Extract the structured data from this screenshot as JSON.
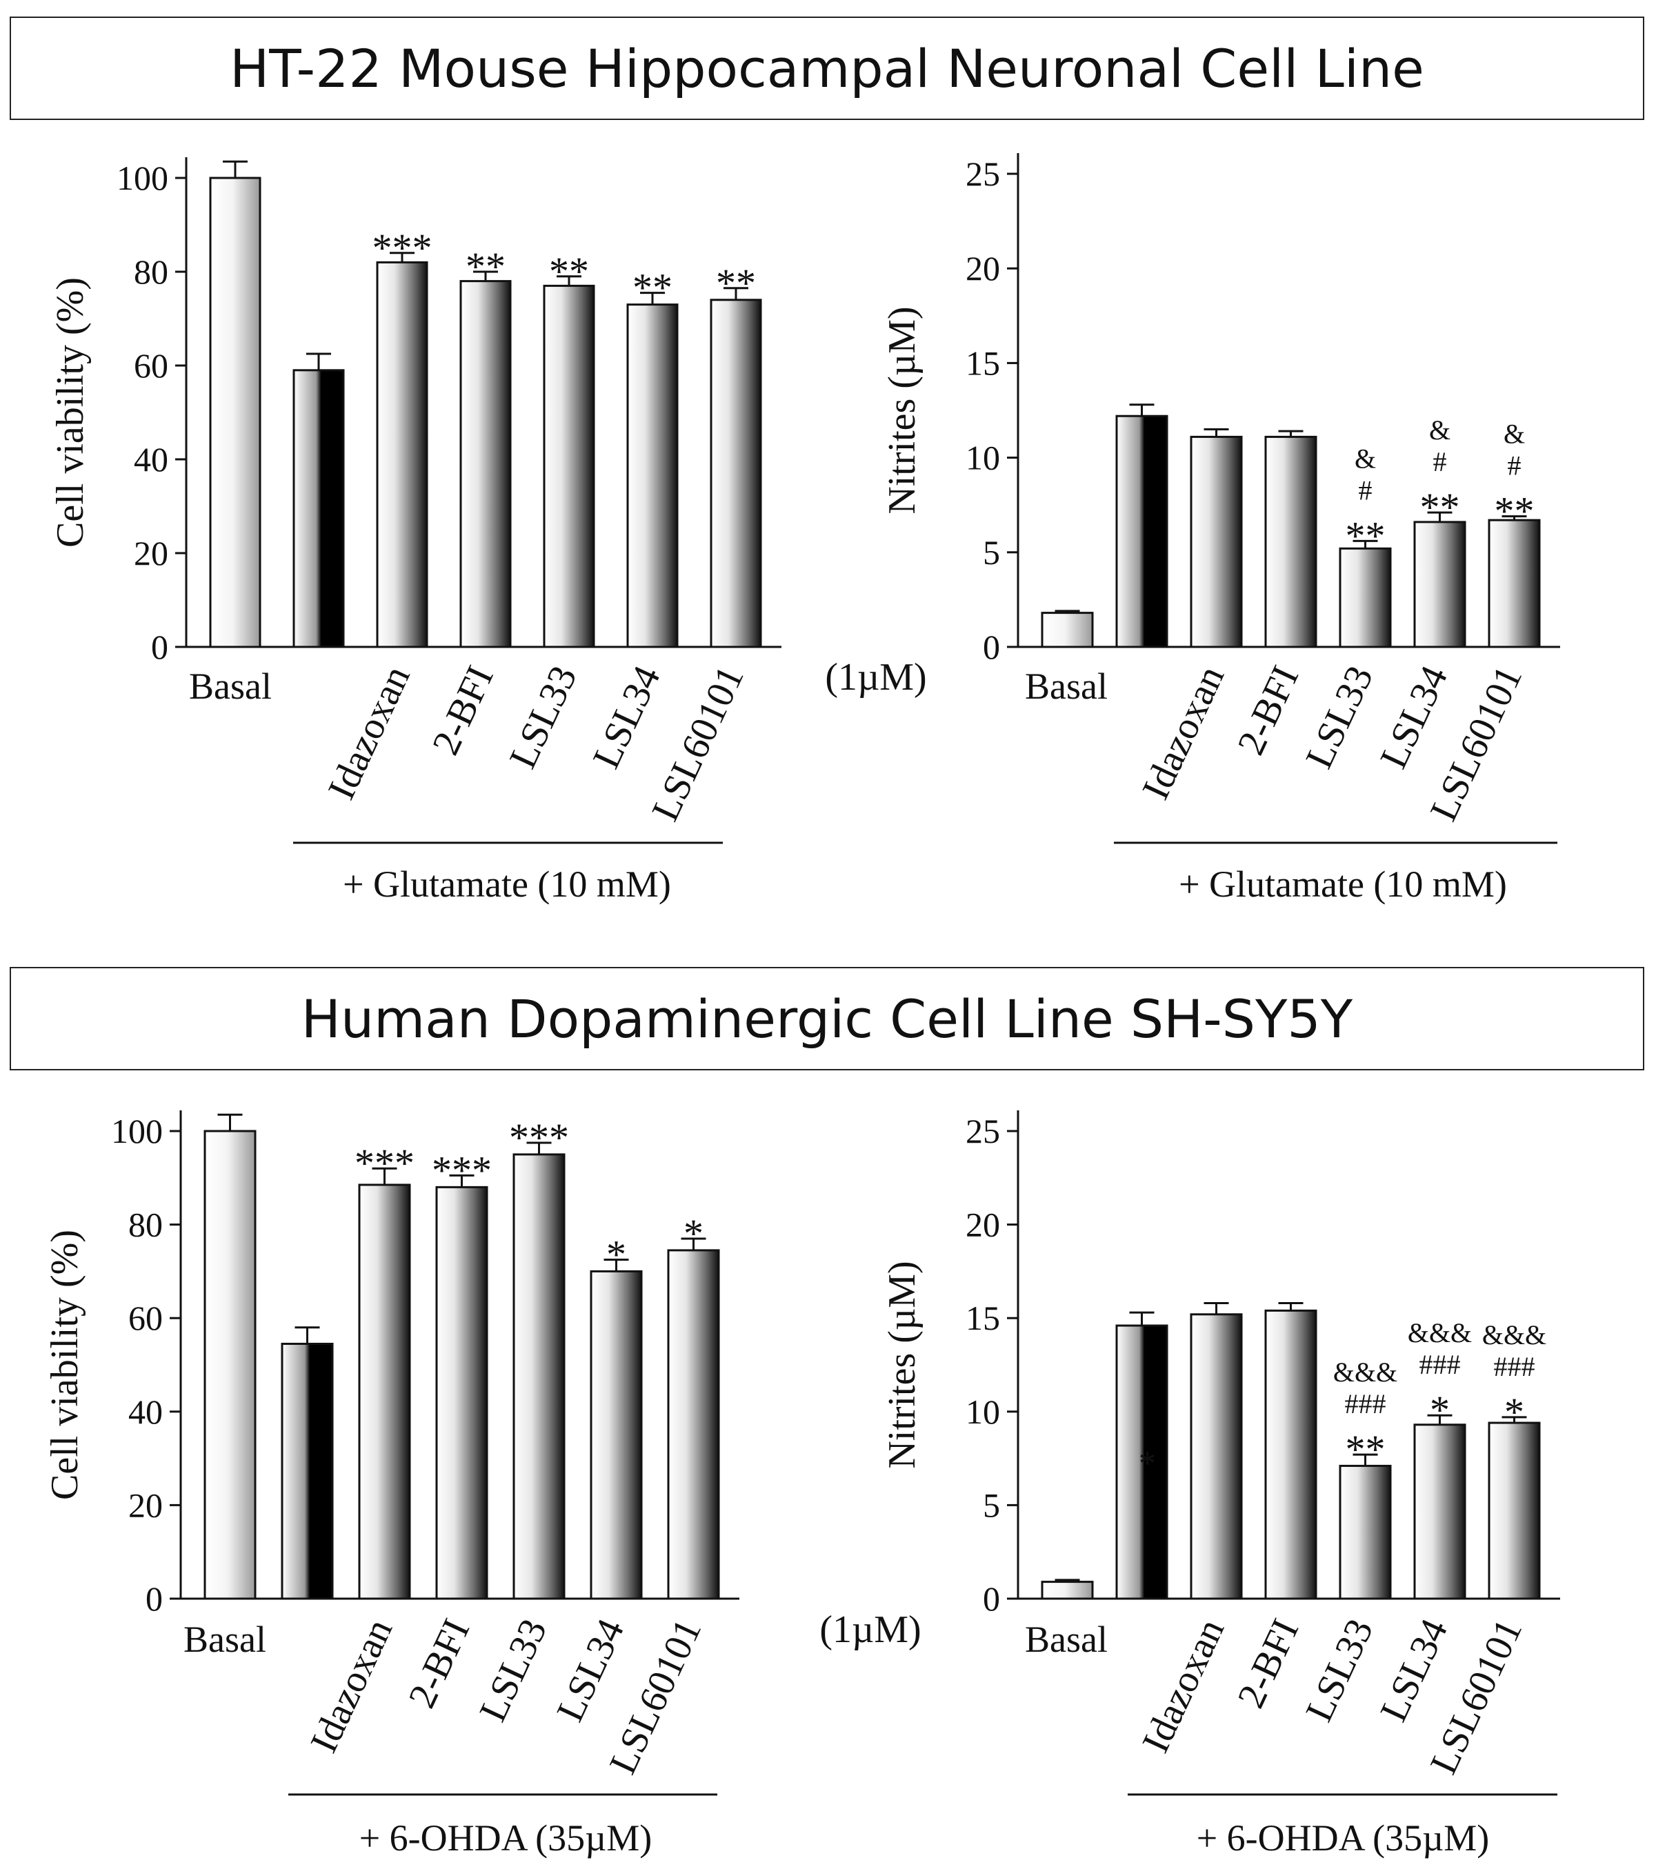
{
  "sections": [
    {
      "title": "HT-22 Mouse Hippocampal Neuronal Cell Line"
    },
    {
      "title": "Human Dopaminergic Cell Line SH-SY5Y"
    }
  ],
  "unit_label": "(1µM)",
  "chart_data": [
    {
      "type": "bar",
      "title": "HT-22 Mouse Hippocampal Neuronal Cell Line",
      "ylabel": "Cell viability (%)",
      "xlabel": "+ Glutamate (10 mM)",
      "ylim": [
        0,
        100
      ],
      "yticks": [
        0,
        20,
        40,
        60,
        80,
        100
      ],
      "categories": [
        "Basal",
        "",
        "Idazoxan",
        "2-BFI",
        "LSL33",
        "LSL34",
        "LSL60101"
      ],
      "values": [
        100,
        59,
        82,
        78,
        77,
        73,
        74
      ],
      "errors": [
        3.5,
        3.5,
        2.0,
        2.0,
        2.0,
        2.5,
        2.5
      ],
      "annotations": [
        [],
        [],
        [
          "***"
        ],
        [
          "**"
        ],
        [
          "**"
        ],
        [
          "**"
        ],
        [
          "**"
        ]
      ],
      "grid": false
    },
    {
      "type": "bar",
      "title": "HT-22 Mouse Hippocampal Neuronal Cell Line",
      "ylabel": "Nitrites (µM)",
      "xlabel": "+ Glutamate (10 mM)",
      "ylim": [
        0,
        25
      ],
      "yticks": [
        0,
        5,
        10,
        15,
        20,
        25
      ],
      "categories": [
        "Basal",
        "",
        "Idazoxan",
        "2-BFI",
        "LSL33",
        "LSL34",
        "LSL60101"
      ],
      "values": [
        1.8,
        12.2,
        11.1,
        11.1,
        5.2,
        6.6,
        6.7
      ],
      "errors": [
        0.1,
        0.6,
        0.4,
        0.3,
        0.4,
        0.5,
        0.2
      ],
      "annotations": [
        [],
        [],
        [],
        [],
        [
          "**",
          "#",
          "&"
        ],
        [
          "**",
          "#",
          "&"
        ],
        [
          "**",
          "#",
          "&"
        ]
      ],
      "grid": false
    },
    {
      "type": "bar",
      "title": "Human Dopaminergic Cell Line SH-SY5Y",
      "ylabel": "Cell viability (%)",
      "xlabel": "+ 6-OHDA (35µM)",
      "ylim": [
        0,
        100
      ],
      "yticks": [
        0,
        20,
        40,
        60,
        80,
        100
      ],
      "categories": [
        "Basal",
        "",
        "Idazoxan",
        "2-BFI",
        "LSL33",
        "LSL34",
        "LSL60101"
      ],
      "values": [
        100,
        54.5,
        88.5,
        88,
        95,
        70,
        74.5
      ],
      "errors": [
        3.5,
        3.5,
        3.5,
        2.5,
        2.5,
        2.5,
        2.5
      ],
      "annotations": [
        [],
        [],
        [
          "***"
        ],
        [
          "***"
        ],
        [
          "***"
        ],
        [
          "*"
        ],
        [
          "*"
        ]
      ],
      "grid": false
    },
    {
      "type": "bar",
      "title": "Human Dopaminergic Cell Line SH-SY5Y",
      "ylabel": "Nitrites (µM)",
      "xlabel": "+ 6-OHDA (35µM)",
      "ylim": [
        0,
        25
      ],
      "yticks": [
        0,
        5,
        10,
        15,
        20,
        25
      ],
      "categories": [
        "Basal",
        "",
        "Idazoxan",
        "2-BFI",
        "LSL33",
        "LSL34",
        "LSL60101"
      ],
      "values": [
        0.9,
        14.6,
        15.2,
        15.4,
        7.1,
        9.3,
        9.4
      ],
      "errors": [
        0.1,
        0.7,
        0.6,
        0.4,
        0.6,
        0.5,
        0.3
      ],
      "annotations": [
        [],
        [],
        [],
        [],
        [
          "**",
          "###",
          "&&&"
        ],
        [
          "*",
          "###",
          "&&&"
        ],
        [
          "*",
          "###",
          "&&&"
        ]
      ],
      "inner_marks": [
        "",
        "*",
        "",
        "",
        "",
        "",
        ""
      ],
      "grid": false
    }
  ]
}
